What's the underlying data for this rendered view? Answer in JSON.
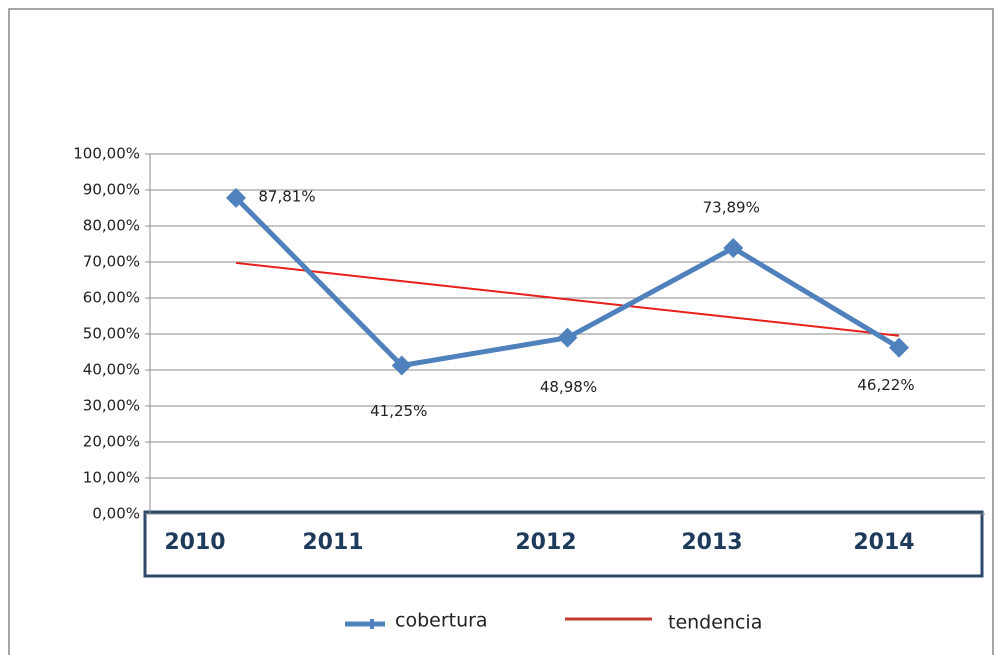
{
  "chart_data": {
    "type": "line",
    "categories": [
      "2010",
      "2011",
      "2012",
      "2013",
      "2014"
    ],
    "series": [
      {
        "name": "cobertura",
        "color": "#4f81bd",
        "values": [
          87.81,
          41.25,
          48.98,
          73.89,
          46.22
        ],
        "value_labels": [
          "87,81%",
          "41,25%",
          "48,98%",
          "73,89%",
          "46,22%"
        ]
      },
      {
        "name": "tendencia",
        "color": "#e8201a",
        "values": [
          69.74,
          64.69,
          59.63,
          54.58,
          49.52
        ]
      }
    ],
    "ylim": [
      0,
      100
    ],
    "yticks": [
      {
        "value": 0,
        "label": "0,00%"
      },
      {
        "value": 10,
        "label": "10,00%"
      },
      {
        "value": 20,
        "label": "20,00%"
      },
      {
        "value": 30,
        "label": "30,00%"
      },
      {
        "value": 40,
        "label": "40,00%"
      },
      {
        "value": 50,
        "label": "50,00%"
      },
      {
        "value": 60,
        "label": "60,00%"
      },
      {
        "value": 70,
        "label": "70,00%"
      },
      {
        "value": 80,
        "label": "80,00%"
      },
      {
        "value": 90,
        "label": "90,00%"
      },
      {
        "value": 100,
        "label": "100,00%"
      }
    ],
    "grid": true
  }
}
